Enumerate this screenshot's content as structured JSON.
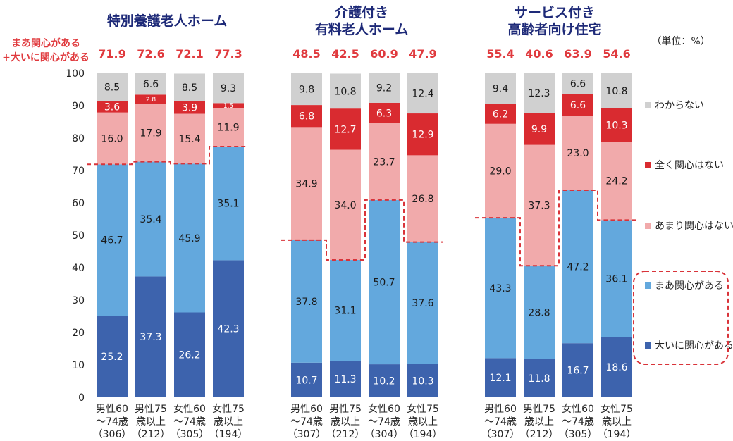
{
  "chart_data": {
    "type": "bar",
    "stacked": true,
    "unit_label": "（単位：%）",
    "sum_label": [
      "まあ関心がある",
      "+大いに関心がある"
    ],
    "ylim": [
      0,
      100
    ],
    "yticks": [
      0,
      10,
      20,
      30,
      40,
      50,
      60,
      70,
      80,
      90,
      100
    ],
    "series": [
      {
        "name": "大いに関心がある",
        "color": "#3d63ad"
      },
      {
        "name": "まあ関心がある",
        "color": "#63a8dd"
      },
      {
        "name": "あまり関心はない",
        "color": "#f1aaab"
      },
      {
        "name": "全く関心はない",
        "color": "#d92b30"
      },
      {
        "name": "わからない",
        "color": "#d0d0d0"
      }
    ],
    "legend_order": [
      "わからない",
      "全く関心はない",
      "あまり関心はない",
      "まあ関心がある",
      "大いに関心がある"
    ],
    "groups": [
      {
        "title": [
          "特別養護老人ホーム"
        ],
        "bars": [
          {
            "label": [
              "男性60",
              "～74歳",
              "（306）"
            ],
            "sum": "71.9",
            "values": [
              25.2,
              46.7,
              16.0,
              3.6,
              8.5
            ]
          },
          {
            "label": [
              "男性75",
              "歳以上",
              "（212）"
            ],
            "sum": "72.6",
            "values": [
              37.3,
              35.4,
              17.9,
              2.8,
              6.6
            ]
          },
          {
            "label": [
              "女性60",
              "～74歳",
              "（305）"
            ],
            "sum": "72.1",
            "values": [
              26.2,
              45.9,
              15.4,
              3.9,
              8.5
            ]
          },
          {
            "label": [
              "女性75",
              "歳以上",
              "（194）"
            ],
            "sum": "77.3",
            "values": [
              42.3,
              35.1,
              11.9,
              1.5,
              9.3
            ]
          }
        ]
      },
      {
        "title": [
          "介護付き",
          "有料老人ホーム"
        ],
        "bars": [
          {
            "label": [
              "男性60",
              "～74歳",
              "（307）"
            ],
            "sum": "48.5",
            "values": [
              10.7,
              37.8,
              34.9,
              6.8,
              9.8
            ]
          },
          {
            "label": [
              "男性75",
              "歳以上",
              "（212）"
            ],
            "sum": "42.5",
            "values": [
              11.3,
              31.1,
              34.0,
              12.7,
              10.8
            ]
          },
          {
            "label": [
              "女性60",
              "～74歳",
              "（304）"
            ],
            "sum": "60.9",
            "values": [
              10.2,
              50.7,
              23.7,
              6.3,
              9.2
            ]
          },
          {
            "label": [
              "女性75",
              "歳以上",
              "（194）"
            ],
            "sum": "47.9",
            "values": [
              10.3,
              37.6,
              26.8,
              12.9,
              12.4
            ]
          }
        ]
      },
      {
        "title": [
          "サービス付き",
          "高齢者向け住宅"
        ],
        "bars": [
          {
            "label": [
              "男性60",
              "～74歳",
              "（307）"
            ],
            "sum": "55.4",
            "values": [
              12.1,
              43.3,
              29.0,
              6.2,
              9.4
            ]
          },
          {
            "label": [
              "男性75",
              "歳以上",
              "（212）"
            ],
            "sum": "40.6",
            "values": [
              11.8,
              28.8,
              37.3,
              9.9,
              12.3
            ]
          },
          {
            "label": [
              "女性60",
              "～74歳",
              "（305）"
            ],
            "sum": "63.9",
            "values": [
              16.7,
              47.2,
              23.0,
              6.6,
              6.6
            ]
          },
          {
            "label": [
              "女性75",
              "歳以上",
              "（194）"
            ],
            "sum": "54.6",
            "values": [
              18.6,
              36.1,
              24.2,
              10.3,
              10.8
            ]
          }
        ]
      }
    ]
  }
}
